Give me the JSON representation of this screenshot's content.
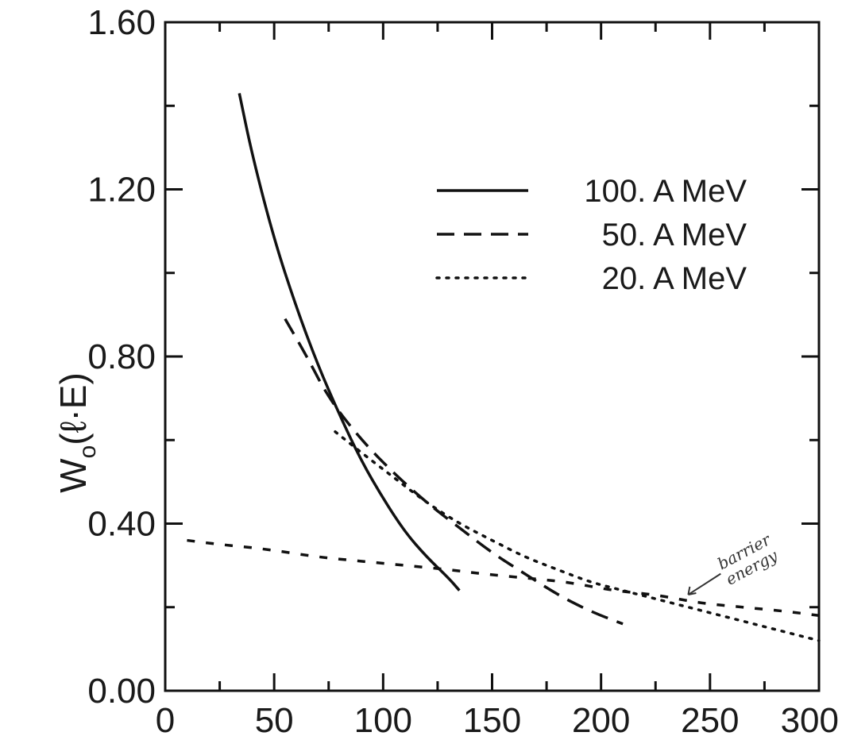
{
  "chart_data": {
    "type": "line",
    "title": "",
    "xlabel": "",
    "ylabel": "W0(ℓ·E)",
    "ylabel_parts": {
      "main": "W",
      "sub": "o",
      "rest": "(ℓ·E)"
    },
    "xlim": [
      0,
      300
    ],
    "ylim": [
      0,
      1.6
    ],
    "xticks": [
      0,
      50,
      100,
      150,
      200,
      250,
      300
    ],
    "xtick_labels": [
      "0",
      "50",
      "100",
      "150",
      "200",
      "250",
      "300"
    ],
    "yticks": [
      0,
      0.4,
      0.8,
      1.2,
      1.6
    ],
    "ytick_labels": [
      "0.00",
      "0.40",
      "0.80",
      "1.20",
      "1.60"
    ],
    "grid": false,
    "legend_position": "top-right",
    "series": [
      {
        "name": "100. A MeV",
        "style": "solid",
        "x": [
          34,
          40,
          50,
          60,
          70,
          80,
          90,
          100,
          110,
          120,
          130,
          135
        ],
        "y": [
          1.43,
          1.28,
          1.08,
          0.92,
          0.78,
          0.66,
          0.55,
          0.46,
          0.38,
          0.32,
          0.27,
          0.24
        ]
      },
      {
        "name": "50. A MeV",
        "style": "dashed",
        "x": [
          55,
          65,
          75,
          90,
          105,
          120,
          135,
          150,
          165,
          180,
          195,
          210
        ],
        "y": [
          0.89,
          0.8,
          0.7,
          0.6,
          0.52,
          0.45,
          0.39,
          0.33,
          0.28,
          0.23,
          0.19,
          0.16
        ]
      },
      {
        "name": "20. A MeV",
        "style": "dotted",
        "x": [
          78,
          90,
          105,
          120,
          135,
          150,
          165,
          180,
          195,
          210,
          225,
          240,
          255,
          270,
          285,
          300
        ],
        "y": [
          0.62,
          0.57,
          0.51,
          0.45,
          0.4,
          0.36,
          0.32,
          0.29,
          0.26,
          0.24,
          0.22,
          0.2,
          0.18,
          0.16,
          0.14,
          0.12
        ]
      },
      {
        "name": "",
        "style": "hand-drawn-dashed",
        "x": [
          10,
          25,
          45,
          70,
          90,
          110,
          130,
          145,
          165,
          185,
          205,
          225,
          245,
          265,
          285,
          300
        ],
        "y": [
          0.36,
          0.35,
          0.34,
          0.32,
          0.31,
          0.3,
          0.29,
          0.28,
          0.27,
          0.26,
          0.24,
          0.23,
          0.21,
          0.2,
          0.19,
          0.18
        ]
      }
    ],
    "annotation": {
      "text_lines": [
        "barrier",
        "energy"
      ],
      "x": 252,
      "y": 0.28,
      "arrow_to": [
        240,
        0.23
      ]
    }
  }
}
